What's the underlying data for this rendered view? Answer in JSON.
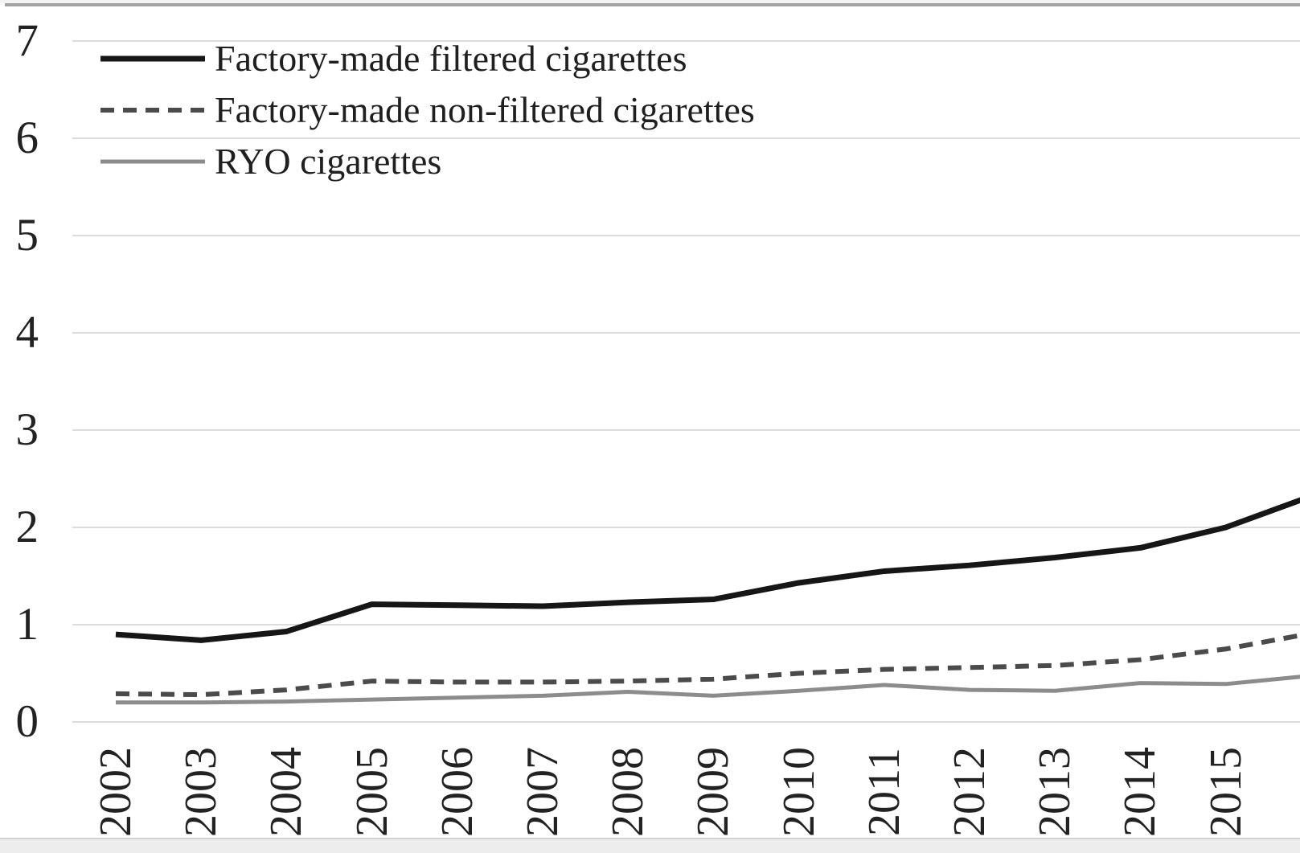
{
  "chart_data": {
    "type": "line",
    "title": "",
    "xlabel": "",
    "ylabel": "",
    "categories": [
      "2002",
      "2003",
      "2004",
      "2005",
      "2006",
      "2007",
      "2008",
      "2009",
      "2010",
      "2011",
      "2012",
      "2013",
      "2014",
      "2015"
    ],
    "yticks": [
      "0",
      "1",
      "2",
      "3",
      "4",
      "5",
      "6",
      "7"
    ],
    "ylim": [
      0,
      7
    ],
    "grid": true,
    "legend_position": "top-left",
    "right_edge_cut": true,
    "series": [
      {
        "name": "Factory-made filtered cigarettes",
        "values": [
          0.9,
          0.84,
          0.93,
          1.21,
          1.2,
          1.19,
          1.23,
          1.26,
          1.43,
          1.55,
          1.61,
          1.69,
          1.79,
          2.0
        ],
        "edge_value": 2.3,
        "color": "#161616",
        "stroke_width": 7,
        "dash": ""
      },
      {
        "name": "Factory-made non-filtered cigarettes",
        "values": [
          0.29,
          0.28,
          0.33,
          0.42,
          0.41,
          0.41,
          0.42,
          0.44,
          0.5,
          0.54,
          0.56,
          0.58,
          0.64,
          0.75
        ],
        "edge_value": 0.9,
        "color": "#4b4b4b",
        "stroke_width": 6,
        "dash": "17 11"
      },
      {
        "name": "RYO cigarettes",
        "values": [
          0.2,
          0.2,
          0.21,
          0.23,
          0.25,
          0.27,
          0.31,
          0.27,
          0.32,
          0.38,
          0.33,
          0.32,
          0.4,
          0.39
        ],
        "edge_value": 0.47,
        "color": "#8c8c8c",
        "stroke_width": 5,
        "dash": ""
      }
    ]
  },
  "colors": {
    "gridline": "#dcdcdc",
    "axis_text": "#222222",
    "top_border": "#a2a2a2",
    "bottom_strip": "#ededed"
  }
}
